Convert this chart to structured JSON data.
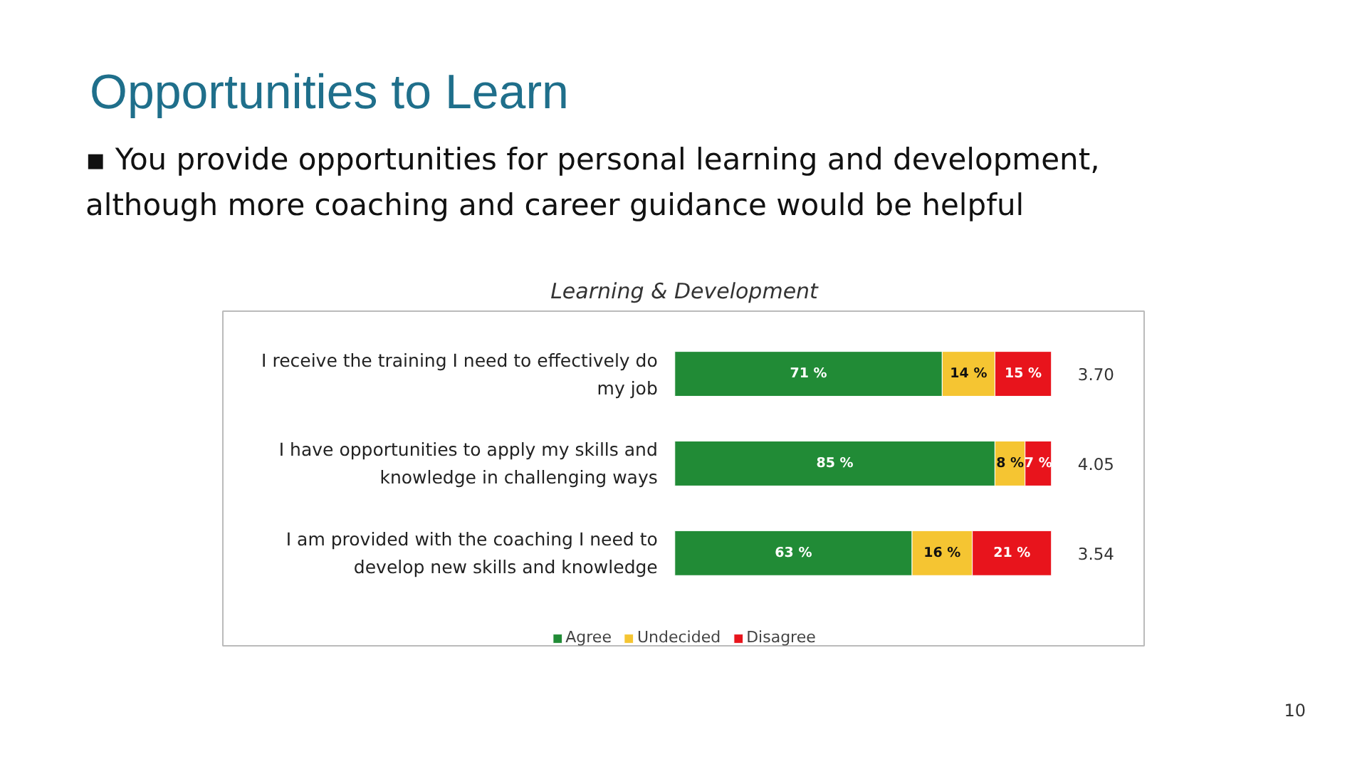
{
  "chart_data": {
    "type": "bar",
    "orientation": "horizontal",
    "stacked": true,
    "title": "Opportunities to Learn",
    "subtitle": "▪ You provide opportunities for personal learning and development, although more coaching and career guidance would be helpful",
    "categories": [
      "I receive the training I need to effectively do my job",
      "I have opportunities to apply my skills and knowledge in challenging ways",
      "I am provided with the coaching I need to develop new skills and knowledge"
    ],
    "series": [
      {
        "name": "Agree",
        "color": "#218b36",
        "values": [
          71,
          85,
          63
        ],
        "value_labels": [
          "71 %",
          "85 %",
          "63 %"
        ]
      },
      {
        "name": "Undecided",
        "color": "#f5c532",
        "values": [
          14,
          8,
          16
        ],
        "value_labels": [
          "14 %",
          "8 %",
          "16 %"
        ]
      },
      {
        "name": "Disagree",
        "color": "#e8141c",
        "values": [
          15,
          7,
          21
        ],
        "value_labels": [
          "15 %",
          "7 %",
          "21 %"
        ]
      }
    ],
    "annotations": [
      "Learning & Development",
      "3.70",
      "4.05",
      "3.54",
      "10"
    ],
    "legend": "bottom",
    "grid": false
  }
}
